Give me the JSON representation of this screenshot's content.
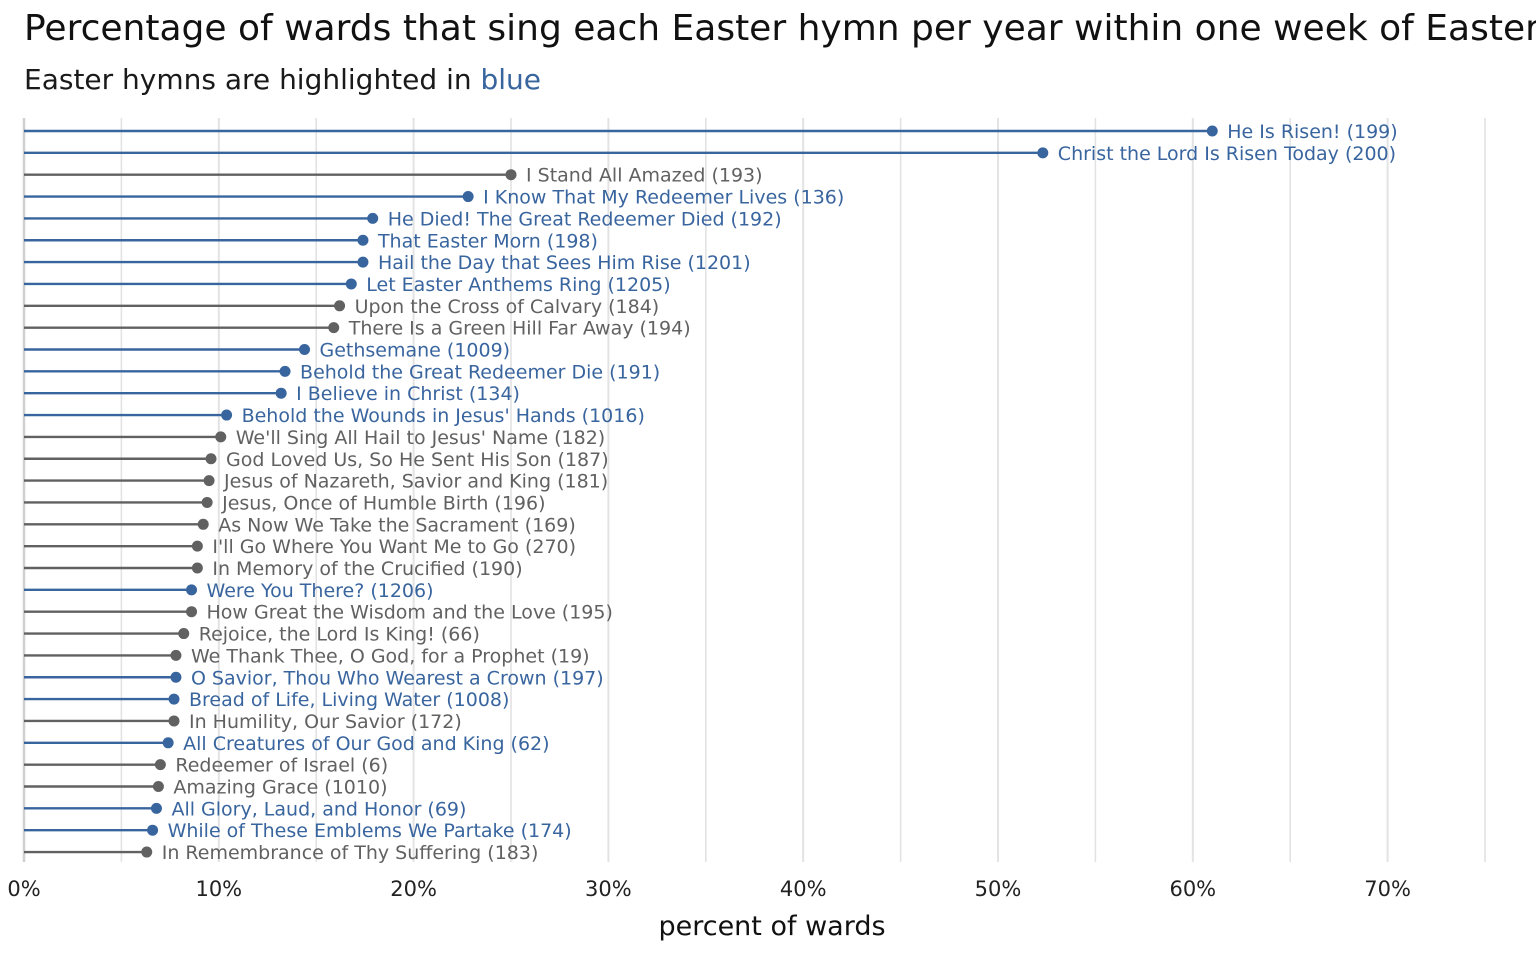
{
  "title": "Percentage of wards that sing each Easter hymn per year within one week of Easter",
  "subtitle": {
    "prefix": "Easter hymns are highlighted in ",
    "highlight": "blue"
  },
  "colors": {
    "easter": "#39659f",
    "other": "#616161",
    "grid": "#e3e3e3",
    "axis": "#d0d0d0"
  },
  "chart_data": {
    "type": "lollipop",
    "orientation": "horizontal",
    "xlabel": "percent of wards",
    "xlim": [
      0,
      75
    ],
    "xticks": [
      0,
      10,
      20,
      30,
      40,
      50,
      60,
      70
    ],
    "xtick_labels": [
      "0%",
      "10%",
      "20%",
      "30%",
      "40%",
      "50%",
      "60%",
      "70%"
    ],
    "grid": true,
    "points": [
      {
        "label": "He Is Risen! (199)",
        "value": 61.0,
        "easter": true
      },
      {
        "label": "Christ the Lord Is Risen Today (200)",
        "value": 52.3,
        "easter": true
      },
      {
        "label": "I Stand All Amazed (193)",
        "value": 25.0,
        "easter": false
      },
      {
        "label": "I Know That My Redeemer Lives (136)",
        "value": 22.8,
        "easter": true
      },
      {
        "label": "He Died! The Great Redeemer Died (192)",
        "value": 17.9,
        "easter": true
      },
      {
        "label": "That Easter Morn (198)",
        "value": 17.4,
        "easter": true
      },
      {
        "label": "Hail the Day that Sees Him Rise (1201)",
        "value": 17.4,
        "easter": true
      },
      {
        "label": "Let Easter Anthems Ring (1205)",
        "value": 16.8,
        "easter": true
      },
      {
        "label": "Upon the Cross of Calvary (184)",
        "value": 16.2,
        "easter": false
      },
      {
        "label": "There Is a Green Hill Far Away (194)",
        "value": 15.9,
        "easter": false
      },
      {
        "label": "Gethsemane (1009)",
        "value": 14.4,
        "easter": true
      },
      {
        "label": "Behold the Great Redeemer Die (191)",
        "value": 13.4,
        "easter": true
      },
      {
        "label": "I Believe in Christ (134)",
        "value": 13.2,
        "easter": true
      },
      {
        "label": "Behold the Wounds in Jesus' Hands (1016)",
        "value": 10.4,
        "easter": true
      },
      {
        "label": "We'll Sing All Hail to Jesus' Name (182)",
        "value": 10.1,
        "easter": false
      },
      {
        "label": "God Loved Us, So He Sent His Son (187)",
        "value": 9.6,
        "easter": false
      },
      {
        "label": "Jesus of Nazareth, Savior and King (181)",
        "value": 9.5,
        "easter": false
      },
      {
        "label": "Jesus, Once of Humble Birth (196)",
        "value": 9.4,
        "easter": false
      },
      {
        "label": "As Now We Take the Sacrament (169)",
        "value": 9.2,
        "easter": false
      },
      {
        "label": "I'll Go Where You Want Me to Go (270)",
        "value": 8.9,
        "easter": false
      },
      {
        "label": "In Memory of the Crucified (190)",
        "value": 8.9,
        "easter": false
      },
      {
        "label": "Were You There? (1206)",
        "value": 8.6,
        "easter": true
      },
      {
        "label": "How Great the Wisdom and the Love (195)",
        "value": 8.6,
        "easter": false
      },
      {
        "label": "Rejoice, the Lord Is King! (66)",
        "value": 8.2,
        "easter": false
      },
      {
        "label": "We Thank Thee, O God, for a Prophet (19)",
        "value": 7.8,
        "easter": false
      },
      {
        "label": "O Savior, Thou Who Wearest a Crown (197)",
        "value": 7.8,
        "easter": true
      },
      {
        "label": "Bread of Life, Living Water (1008)",
        "value": 7.7,
        "easter": true
      },
      {
        "label": "In Humility, Our Savior (172)",
        "value": 7.7,
        "easter": false
      },
      {
        "label": "All Creatures of Our God and King (62)",
        "value": 7.4,
        "easter": true
      },
      {
        "label": "Redeemer of Israel (6)",
        "value": 7.0,
        "easter": false
      },
      {
        "label": "Amazing Grace (1010)",
        "value": 6.9,
        "easter": false
      },
      {
        "label": "All Glory, Laud, and Honor (69)",
        "value": 6.8,
        "easter": true
      },
      {
        "label": "While of These Emblems We Partake (174)",
        "value": 6.6,
        "easter": true
      },
      {
        "label": "In Remembrance of Thy Suffering (183)",
        "value": 6.3,
        "easter": false
      }
    ]
  }
}
